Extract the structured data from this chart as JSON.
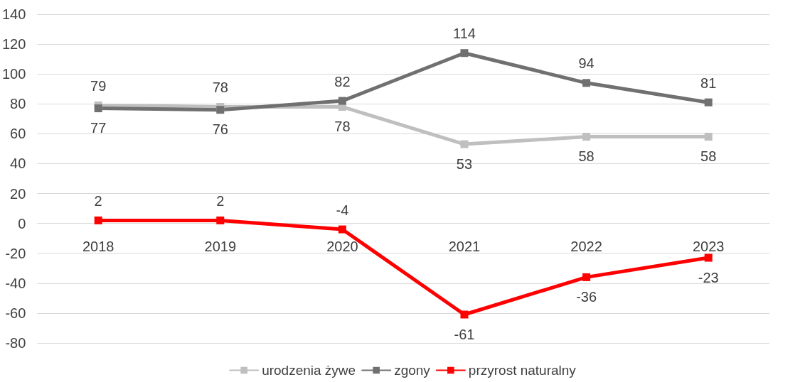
{
  "chart_data": {
    "type": "line",
    "categories": [
      "2018",
      "2019",
      "2020",
      "2021",
      "2022",
      "2023"
    ],
    "series": [
      {
        "name": "urodzenia żywe",
        "color": "#bfbfbf",
        "values": [
          79,
          78,
          78,
          53,
          58,
          58
        ]
      },
      {
        "name": "zgony",
        "color": "#707070",
        "values": [
          77,
          76,
          82,
          114,
          94,
          81
        ]
      },
      {
        "name": "przyrost naturalny",
        "color": "#ff0000",
        "values": [
          2,
          2,
          -4,
          -61,
          -36,
          -23
        ]
      }
    ],
    "ylim": [
      -80,
      140
    ],
    "yticks": [
      -80,
      -60,
      -40,
      -20,
      0,
      20,
      40,
      60,
      80,
      100,
      120,
      140
    ],
    "grid": "y",
    "legend": "bottom",
    "marker": "square",
    "line_style": "solid",
    "data_labels": true
  }
}
